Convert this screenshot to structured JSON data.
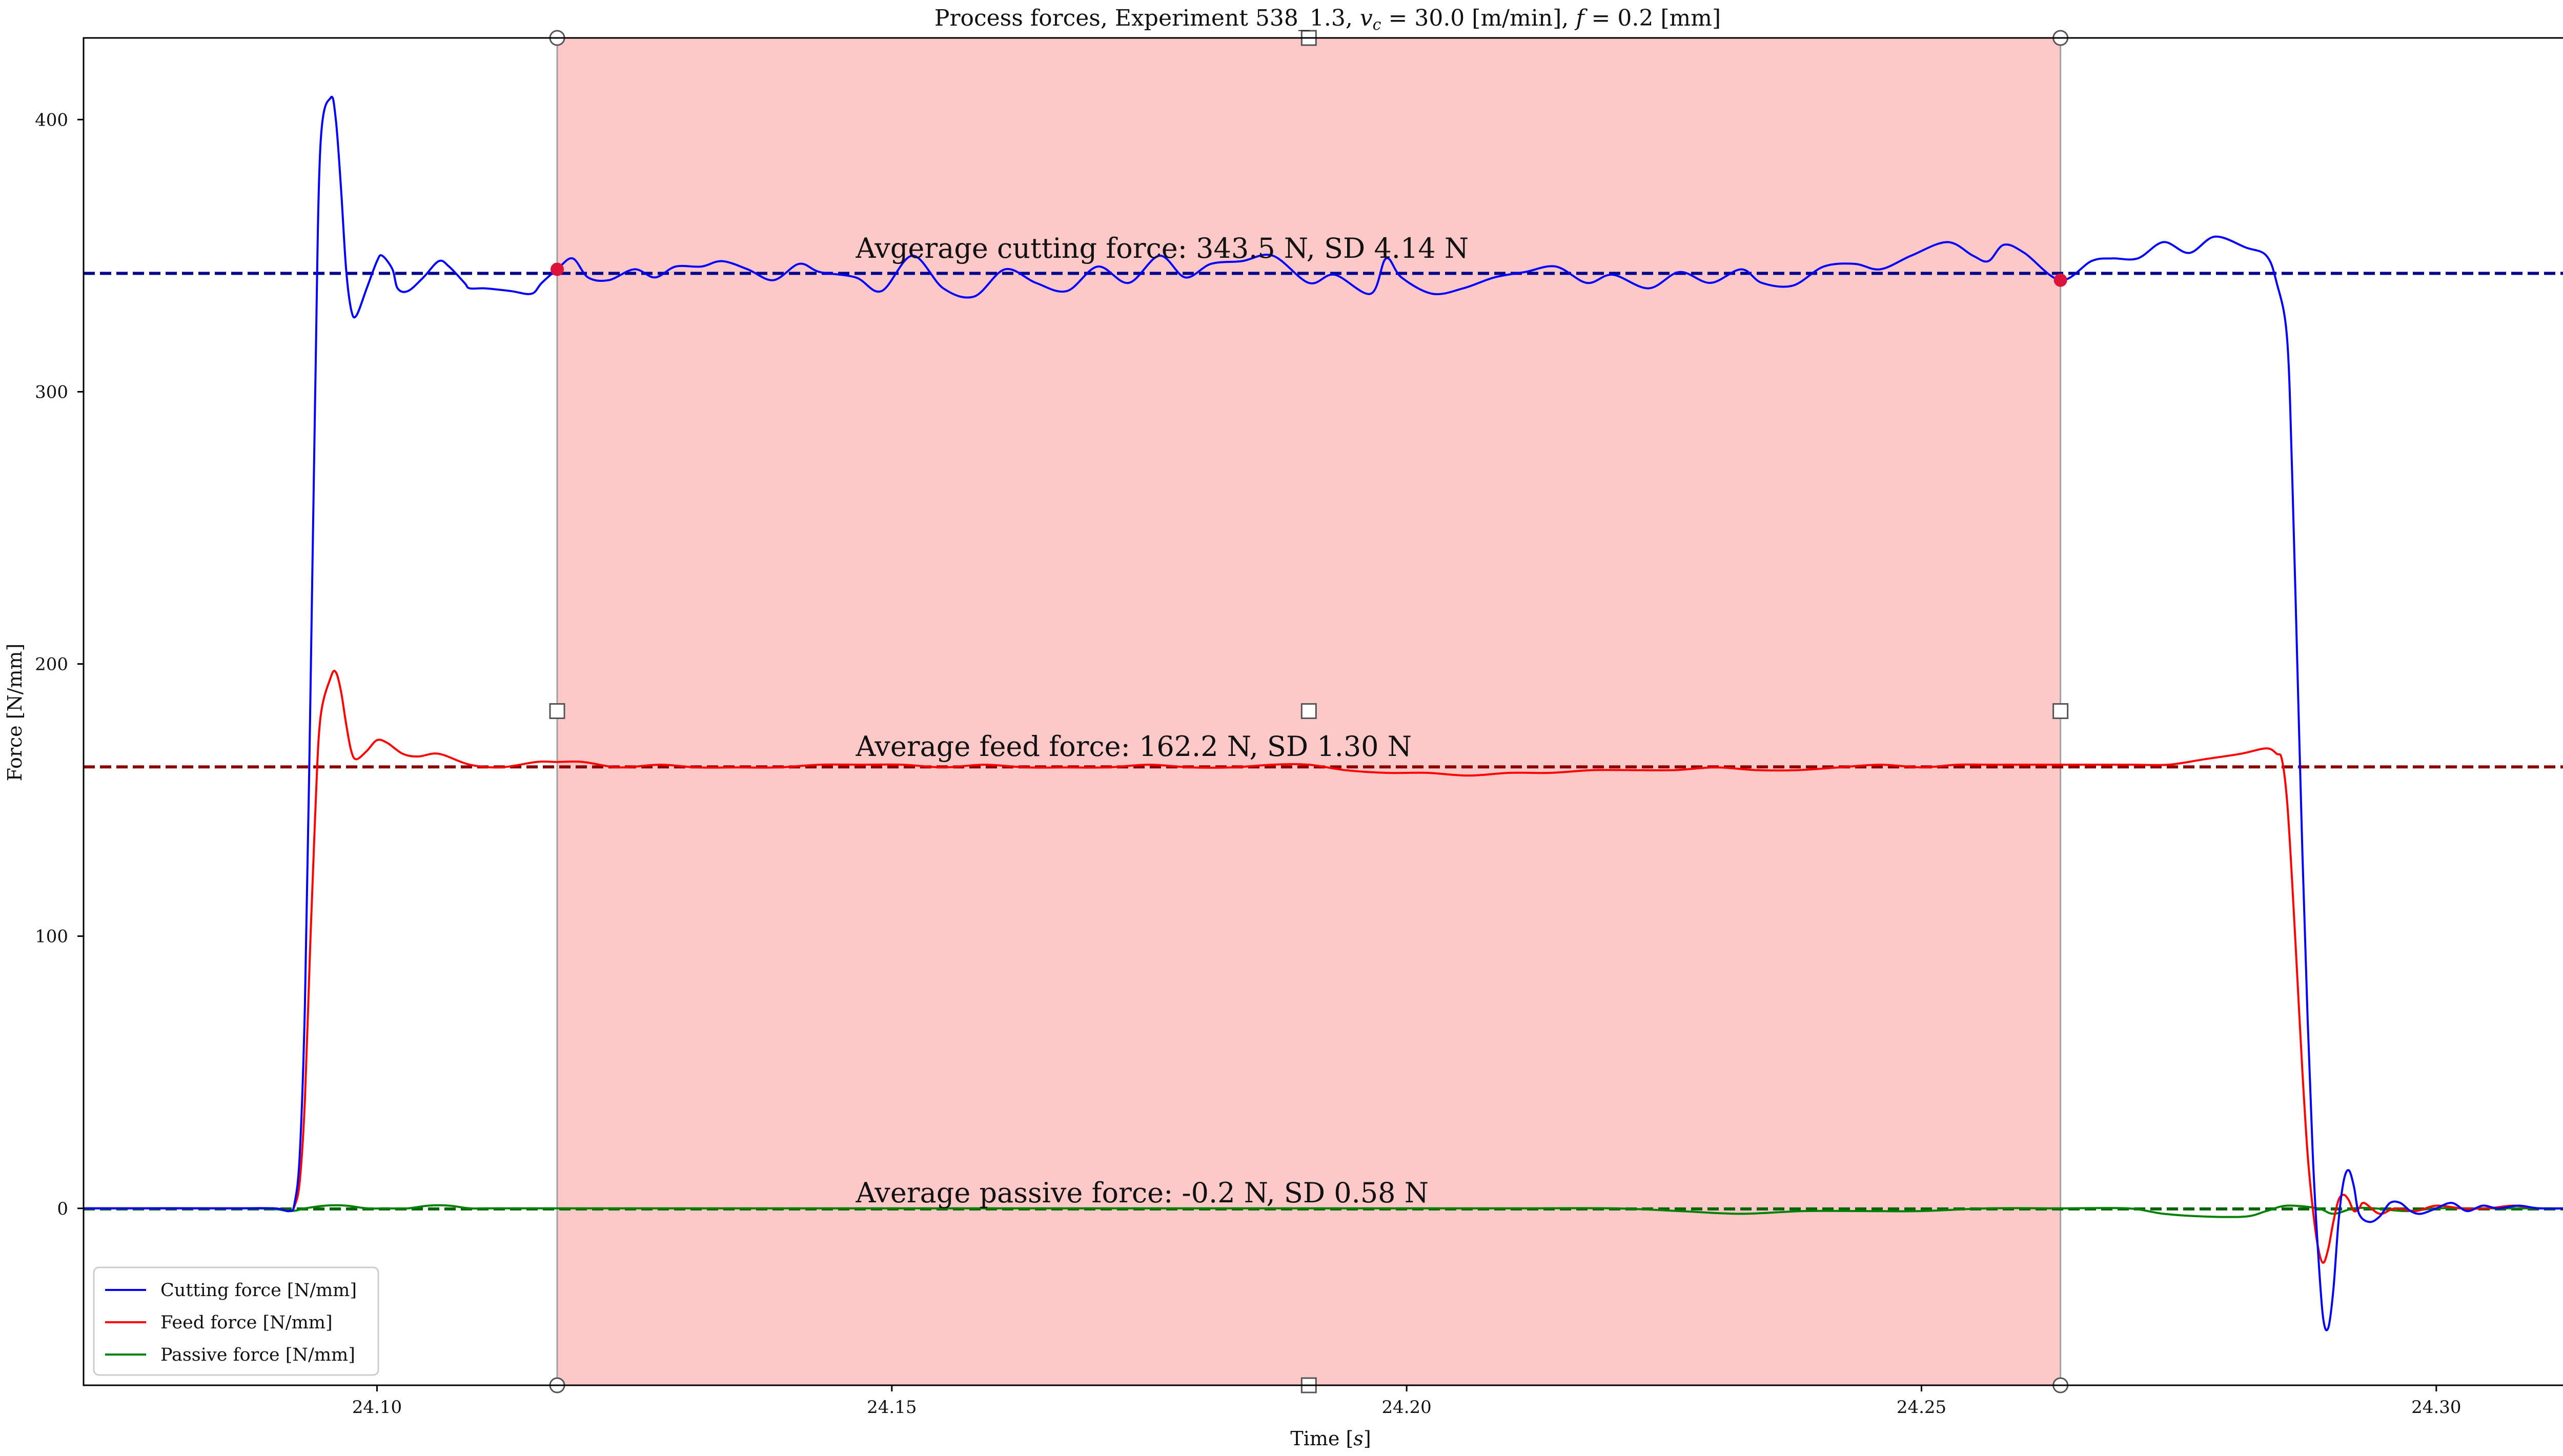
{
  "chart_data": {
    "type": "line",
    "title": "Process forces, Experiment 538_1.3, v_c = 30.0 [m/min], f = 0.2 [mm]",
    "title_parts": {
      "prefix": "Process forces, Experiment 538_1.3, ",
      "vc_symbol": "v",
      "vc_sub": "c",
      "vc_rest": " = 30.0 [m/min], ",
      "f_symbol": "f",
      "f_rest": " = 0.2 [mm]"
    },
    "xlabel": "Time [s]",
    "xlabel_parts": {
      "prefix": "Time [",
      "italic": "s",
      "suffix": "]"
    },
    "ylabel": "Force [N/mm]",
    "xlim": [
      24.0715,
      24.3135
    ],
    "ylim": [
      -65,
      430
    ],
    "x_ticks": [
      24.1,
      24.15,
      24.2,
      24.25,
      24.3
    ],
    "x_tick_labels": [
      "24.10",
      "24.15",
      "24.20",
      "24.25",
      "24.30"
    ],
    "y_ticks": [
      0,
      100,
      200,
      300,
      400
    ],
    "y_tick_labels": [
      "0",
      "100",
      "200",
      "300",
      "400"
    ],
    "grid": false,
    "legend_position": "bottom-left",
    "selection_span": {
      "x_start": 24.1175,
      "x_end": 24.2635,
      "color": "#fcc8c8"
    },
    "reference_lines": [
      {
        "name": "mean_cutting",
        "y": 343.5,
        "color": "#00008b"
      },
      {
        "name": "mean_feed",
        "y": 162.2,
        "color": "#8b0000"
      },
      {
        "name": "mean_passive",
        "y": -0.2,
        "color": "#006400"
      }
    ],
    "annotations": [
      {
        "text": "Avgerage cutting force: 343.5 N, SD 4.14 N",
        "x": 24.1465,
        "y": 347
      },
      {
        "text": "Average feed force: 162.2 N, SD 1.30 N",
        "x": 24.1465,
        "y": 164
      },
      {
        "text": "Average passive force: -0.2 N, SD 0.58 N",
        "x": 24.1465,
        "y": 0
      }
    ],
    "markers": [
      {
        "x": 24.1175,
        "y": 345,
        "color": "#dc143c"
      },
      {
        "x": 24.2635,
        "y": 341,
        "color": "#dc143c"
      }
    ],
    "series": [
      {
        "name": "Cutting force [N/mm]",
        "color": "#0000ff",
        "x": [
          24.0715,
          24.085,
          24.09,
          24.0915,
          24.092,
          24.0925,
          24.093,
          24.0935,
          24.094,
          24.0945,
          24.0955,
          24.096,
          24.0965,
          24.097,
          24.0975,
          24.098,
          24.099,
          24.1,
          24.1005,
          24.1015,
          24.102,
          24.103,
          24.1045,
          24.106,
          24.107,
          24.1085,
          24.109,
          24.1105,
          24.113,
          24.115,
          24.116,
          24.1175,
          24.119,
          24.1205,
          24.1225,
          24.125,
          24.127,
          24.129,
          24.1315,
          24.1335,
          24.136,
          24.1385,
          24.141,
          24.143,
          24.1465,
          24.149,
          24.152,
          24.155,
          24.158,
          24.161,
          24.164,
          24.167,
          24.17,
          24.173,
          24.176,
          24.1785,
          24.181,
          24.184,
          24.187,
          24.1905,
          24.193,
          24.1965,
          24.198,
          24.1995,
          24.2025,
          24.2055,
          24.2085,
          24.2115,
          24.2145,
          24.2175,
          24.22,
          24.2235,
          24.2265,
          24.2295,
          24.2325,
          24.2345,
          24.2375,
          24.2405,
          24.2435,
          24.246,
          24.249,
          24.2525,
          24.255,
          24.2565,
          24.258,
          24.26,
          24.2635,
          24.2665,
          24.2685,
          24.271,
          24.2735,
          24.276,
          24.2785,
          24.2815,
          24.2835,
          24.2845,
          24.2855,
          24.286,
          24.2865,
          24.287,
          24.2875,
          24.288,
          24.2885,
          24.289,
          24.2895,
          24.29,
          24.2905,
          24.291,
          24.2915,
          24.292,
          24.2925,
          24.2935,
          24.2945,
          24.2955,
          24.2965,
          24.2975,
          24.2985,
          24.3,
          24.3015,
          24.303,
          24.3045,
          24.306,
          24.308,
          24.31,
          24.3135
        ],
        "y": [
          0,
          0,
          0,
          -1,
          2,
          20,
          75,
          180,
          300,
          390,
          408,
          400,
          375,
          345,
          330,
          328,
          338,
          348,
          350,
          345,
          338,
          337,
          342,
          348,
          346,
          340,
          338,
          338,
          337,
          336,
          340,
          345,
          349,
          342,
          341,
          345,
          342,
          346,
          346,
          348,
          345,
          341,
          347,
          344,
          342,
          337,
          350,
          338,
          335,
          345,
          340,
          337,
          346,
          340,
          350,
          342,
          347,
          348,
          350,
          340,
          343,
          336,
          349,
          342,
          336,
          338,
          342,
          344,
          346,
          340,
          343,
          338,
          344,
          340,
          345,
          340,
          339,
          346,
          347,
          345,
          350,
          355,
          350,
          348,
          354,
          351,
          341,
          348,
          349,
          349,
          355,
          351,
          357,
          353,
          350,
          340,
          320,
          270,
          200,
          130,
          70,
          20,
          -15,
          -40,
          -44,
          -30,
          -5,
          10,
          14,
          8,
          -2,
          -5,
          -3,
          2,
          2,
          -1,
          -2,
          0,
          2,
          -1,
          1,
          0,
          1,
          0,
          0
        ],
        "smooth": true
      },
      {
        "name": "Feed force [N/mm]",
        "color": "#ff0000",
        "x": [
          24.0715,
          24.085,
          24.09,
          24.0915,
          24.092,
          24.0925,
          24.093,
          24.0935,
          24.094,
          24.0945,
          24.0955,
          24.096,
          24.0965,
          24.097,
          24.0975,
          24.098,
          24.099,
          24.1,
          24.101,
          24.1025,
          24.104,
          24.106,
          24.109,
          24.112,
          24.1155,
          24.1175,
          24.12,
          24.1235,
          24.1275,
          24.131,
          24.135,
          24.139,
          24.143,
          24.147,
          24.151,
          24.155,
          24.159,
          24.163,
          24.167,
          24.171,
          24.175,
          24.179,
          24.183,
          24.187,
          24.1905,
          24.194,
          24.198,
          24.202,
          24.206,
          24.21,
          24.214,
          24.218,
          24.222,
          24.226,
          24.23,
          24.234,
          24.238,
          24.242,
          24.246,
          24.25,
          24.2535,
          24.2565,
          24.26,
          24.2635,
          24.267,
          24.2705,
          24.274,
          24.2775,
          24.281,
          24.2835,
          24.2845,
          24.285,
          24.2855,
          24.286,
          24.2865,
          24.287,
          24.2875,
          24.288,
          24.2885,
          24.289,
          24.2895,
          24.29,
          24.2905,
          24.291,
          24.2915,
          24.292,
          24.2925,
          24.293,
          24.2945,
          24.296,
          24.298,
          24.3,
          24.3025,
          24.305,
          24.3075,
          24.31,
          24.3135
        ],
        "y": [
          0,
          0,
          0,
          -1,
          1,
          10,
          40,
          95,
          145,
          180,
          195,
          197,
          190,
          178,
          168,
          165,
          168,
          172,
          171,
          167,
          166,
          167,
          163,
          162,
          164,
          164,
          164,
          162,
          163,
          162,
          162,
          162,
          163,
          163,
          163,
          162,
          163,
          162,
          162,
          162,
          163,
          162,
          162,
          163,
          163,
          161,
          160,
          160,
          159,
          160,
          160,
          161,
          161,
          161,
          162,
          161,
          161,
          162,
          163,
          162,
          163,
          163,
          163,
          163,
          163,
          163,
          163,
          165,
          167,
          169,
          167,
          165,
          150,
          120,
          85,
          50,
          20,
          0,
          -14,
          -20,
          -15,
          -5,
          3,
          5,
          3,
          -1,
          0,
          2,
          -2,
          0,
          -1,
          1,
          0,
          0,
          1,
          0,
          0
        ],
        "smooth": true
      },
      {
        "name": "Passive force [N/mm]",
        "color": "#008000",
        "x": [
          24.0715,
          24.088,
          24.0915,
          24.093,
          24.095,
          24.097,
          24.099,
          24.101,
          24.103,
          24.105,
          24.107,
          24.109,
          24.111,
          24.115,
          24.12,
          24.13,
          24.14,
          24.15,
          24.16,
          24.17,
          24.18,
          24.19,
          24.2,
          24.21,
          24.22,
          24.2265,
          24.2325,
          24.2385,
          24.2445,
          24.25,
          24.2565,
          24.2635,
          24.27,
          24.2735,
          24.2775,
          24.2815,
          24.2835,
          24.2855,
          24.2885,
          24.29,
          24.292,
          24.294,
          24.297,
          24.3,
          24.303,
          24.306,
          24.309,
          24.3135
        ],
        "y": [
          0,
          0,
          -1,
          0,
          1,
          1,
          0,
          0,
          0,
          1,
          1,
          0,
          0,
          0,
          0,
          0,
          0,
          0,
          0,
          0,
          0,
          0,
          0,
          0,
          0,
          -1,
          -2,
          -1,
          -1,
          -1,
          0,
          0,
          0,
          -2,
          -3,
          -3,
          -1,
          1,
          0,
          -2,
          0,
          0,
          -1,
          0,
          0,
          0,
          0,
          0
        ],
        "smooth": true
      }
    ]
  }
}
